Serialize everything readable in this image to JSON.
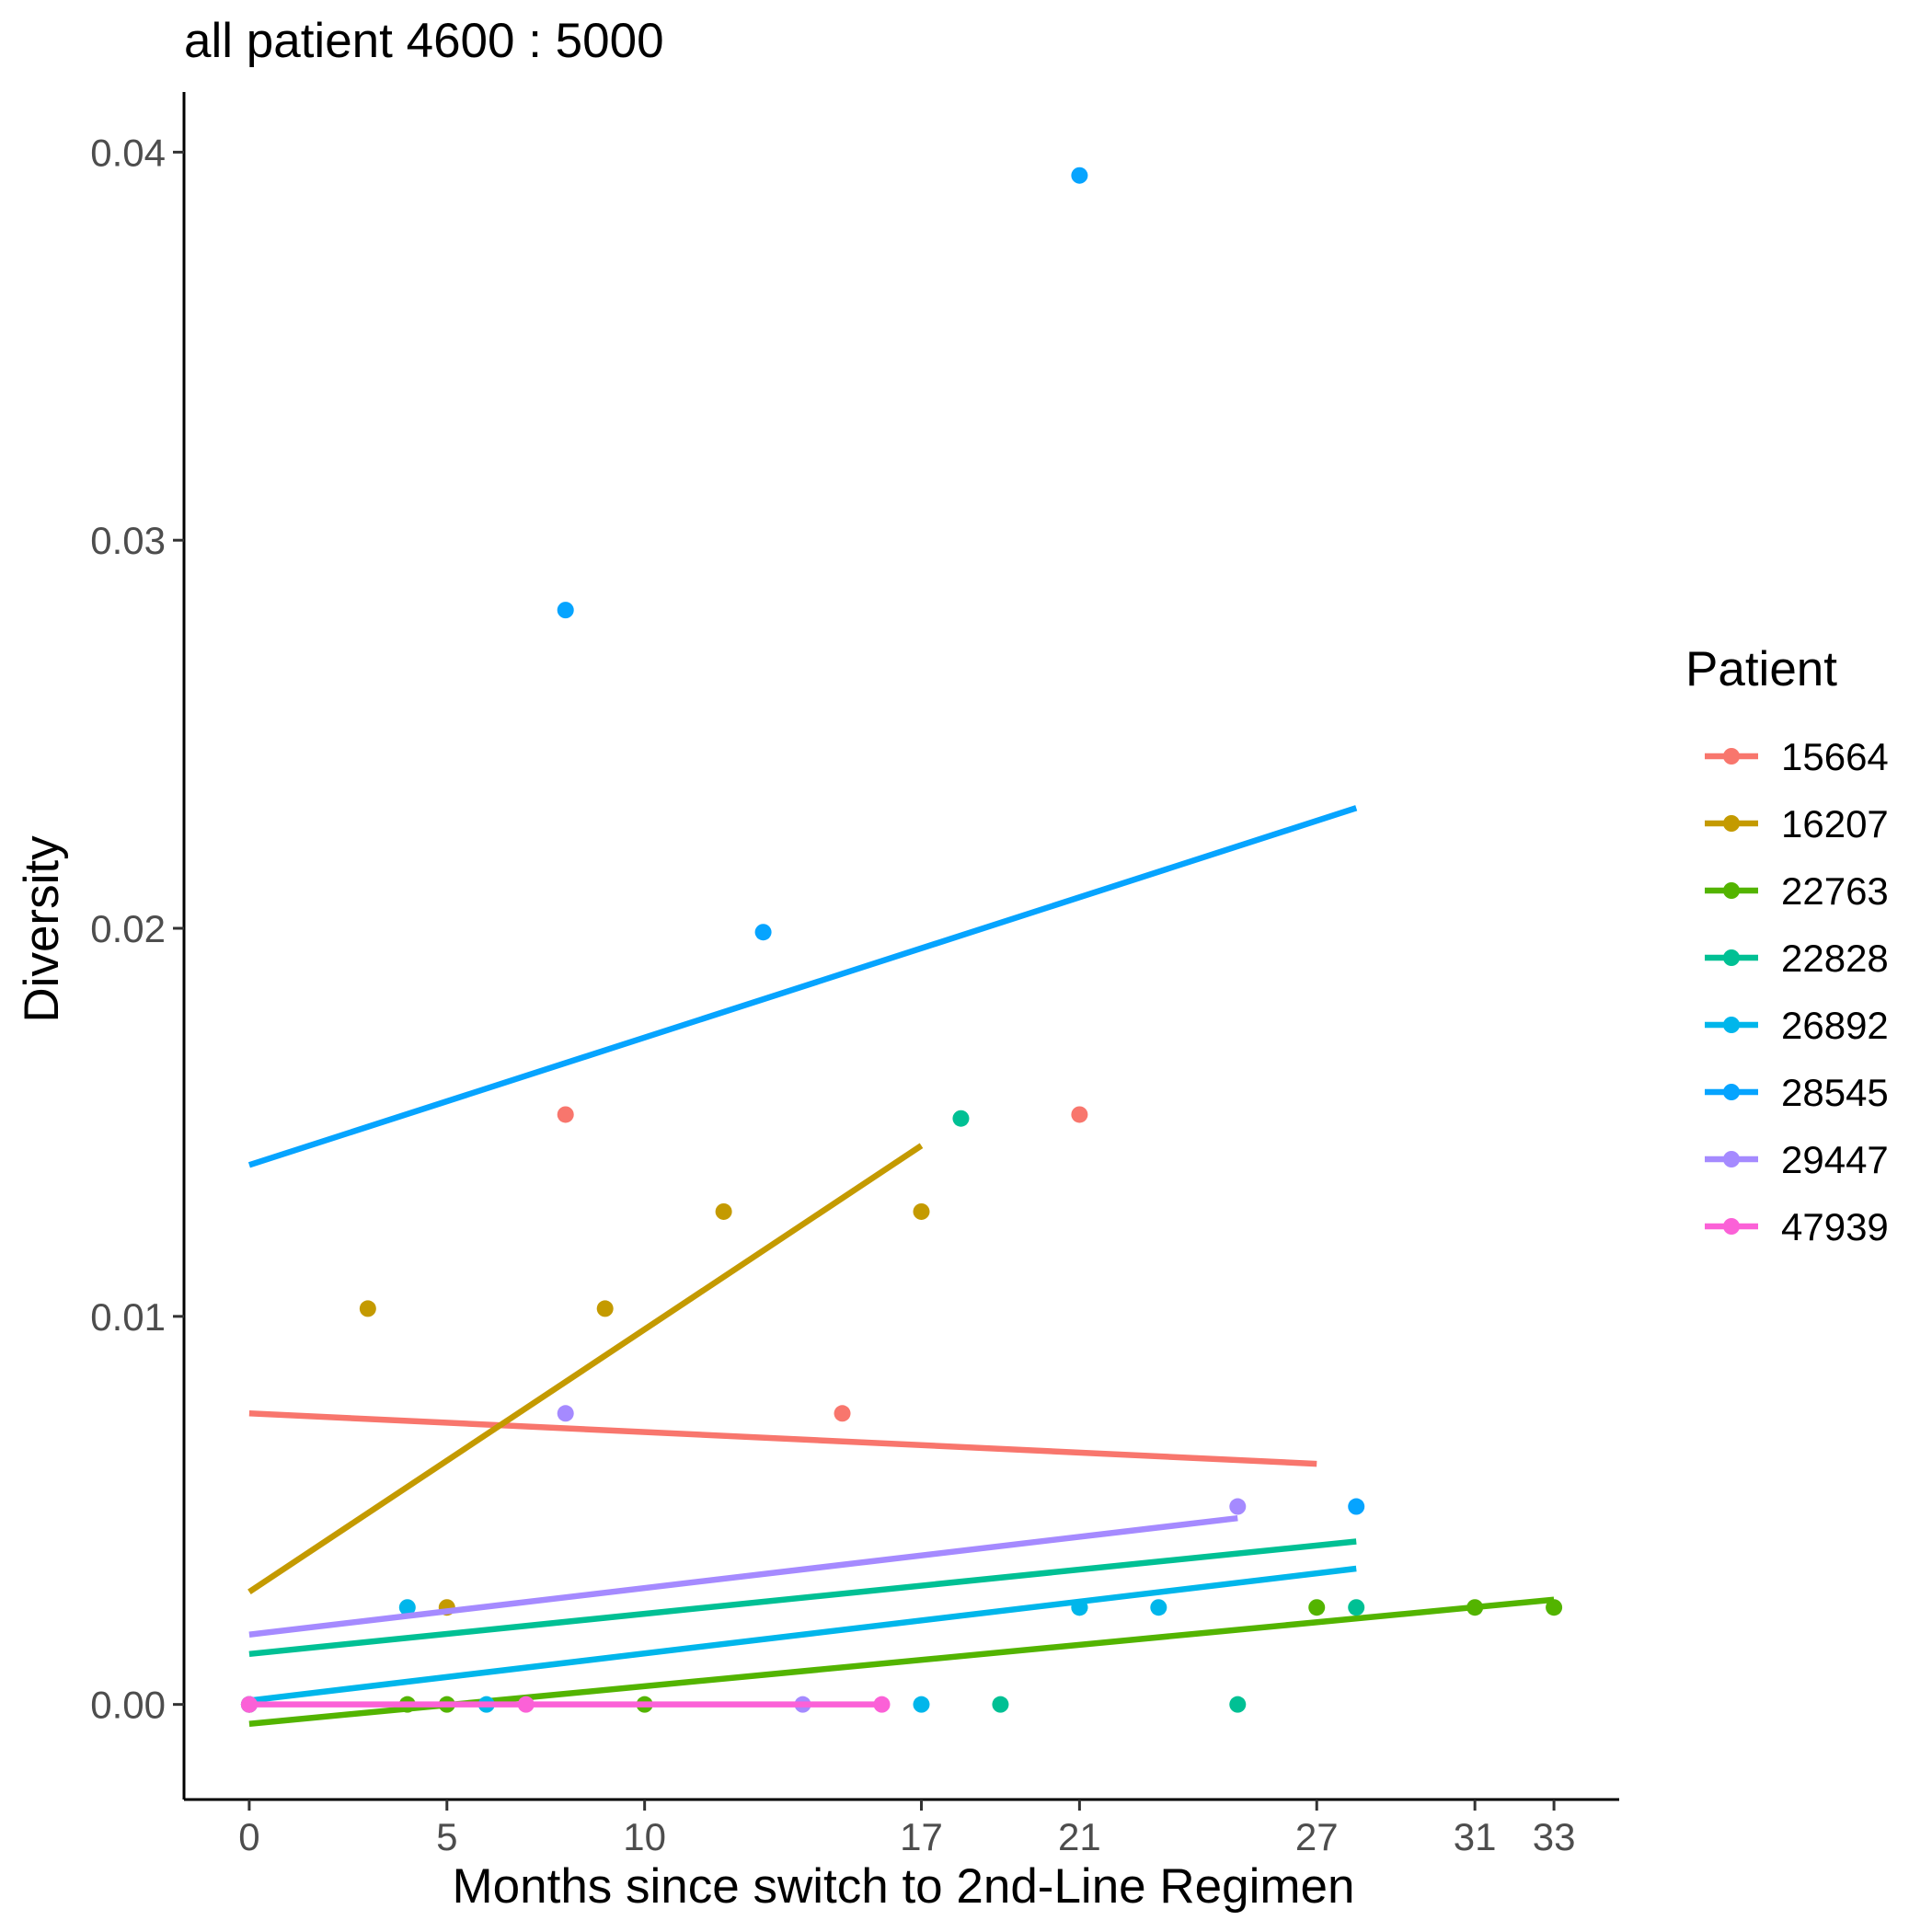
{
  "chart_data": {
    "type": "scatter",
    "title": "all patient 4600 : 5000",
    "xlabel": "Months since switch to 2nd-Line Regimen",
    "ylabel": "Diversity",
    "xlim": [
      -1.65,
      34.65
    ],
    "ylim": [
      -0.00245,
      0.04155
    ],
    "x_ticks": [
      0,
      5,
      10,
      17,
      21,
      27,
      31,
      33
    ],
    "y_ticks": [
      0.0,
      0.01,
      0.02,
      0.03,
      0.04
    ],
    "y_tick_labels": [
      "0.00",
      "0.01",
      "0.02",
      "0.03",
      "0.04"
    ],
    "grid": false,
    "legend": {
      "title": "Patient",
      "position": "right"
    },
    "series": [
      {
        "name": "15664",
        "color": "#F8766D",
        "points": [
          [
            0,
            0.0
          ],
          [
            8,
            0.0152
          ],
          [
            15,
            0.0075
          ],
          [
            21,
            0.0152
          ]
        ],
        "fit": [
          [
            0,
            0.0075
          ],
          [
            27,
            0.0062
          ]
        ]
      },
      {
        "name": "16207",
        "color": "#C49A00",
        "points": [
          [
            3,
            0.0102
          ],
          [
            5,
            0.0025
          ],
          [
            9,
            0.0102
          ],
          [
            12,
            0.0127
          ],
          [
            17,
            0.0127
          ]
        ],
        "fit": [
          [
            0,
            0.0029
          ],
          [
            17,
            0.0144
          ]
        ]
      },
      {
        "name": "22763",
        "color": "#53B400",
        "points": [
          [
            0,
            0.0
          ],
          [
            4,
            0.0
          ],
          [
            5,
            0.0
          ],
          [
            10,
            0.0
          ],
          [
            27,
            0.0025
          ],
          [
            31,
            0.0025
          ],
          [
            33,
            0.0025
          ]
        ],
        "fit": [
          [
            0,
            -0.0005
          ],
          [
            33,
            0.0027
          ]
        ]
      },
      {
        "name": "22828",
        "color": "#00C094",
        "points": [
          [
            18,
            0.0151
          ],
          [
            19,
            0.0
          ],
          [
            21,
            0.0025
          ],
          [
            25,
            0.0
          ],
          [
            28,
            0.0025
          ]
        ],
        "fit": [
          [
            0,
            0.0013
          ],
          [
            28,
            0.0042
          ]
        ]
      },
      {
        "name": "26892",
        "color": "#00B6EB",
        "points": [
          [
            0,
            0.0
          ],
          [
            4,
            0.0025
          ],
          [
            6,
            0.0
          ],
          [
            17,
            0.0
          ],
          [
            21,
            0.0025
          ],
          [
            23,
            0.0025
          ]
        ],
        "fit": [
          [
            0,
            0.0001
          ],
          [
            28,
            0.0035
          ]
        ]
      },
      {
        "name": "28545",
        "color": "#06A4FF",
        "points": [
          [
            8,
            0.0282
          ],
          [
            13,
            0.0199
          ],
          [
            21,
            0.0394
          ],
          [
            28,
            0.0051
          ]
        ],
        "fit": [
          [
            0,
            0.0139
          ],
          [
            28,
            0.0231
          ]
        ]
      },
      {
        "name": "29447",
        "color": "#A58AFF",
        "points": [
          [
            0,
            0.0
          ],
          [
            8,
            0.0075
          ],
          [
            14,
            0.0
          ],
          [
            25,
            0.0051
          ]
        ],
        "fit": [
          [
            0,
            0.0018
          ],
          [
            25,
            0.0048
          ]
        ]
      },
      {
        "name": "47939",
        "color": "#FB61D7",
        "points": [
          [
            0,
            0.0
          ],
          [
            7,
            0.0
          ],
          [
            16,
            0.0
          ]
        ],
        "fit": [
          [
            0,
            0.0
          ],
          [
            16,
            0.0
          ]
        ]
      }
    ]
  }
}
